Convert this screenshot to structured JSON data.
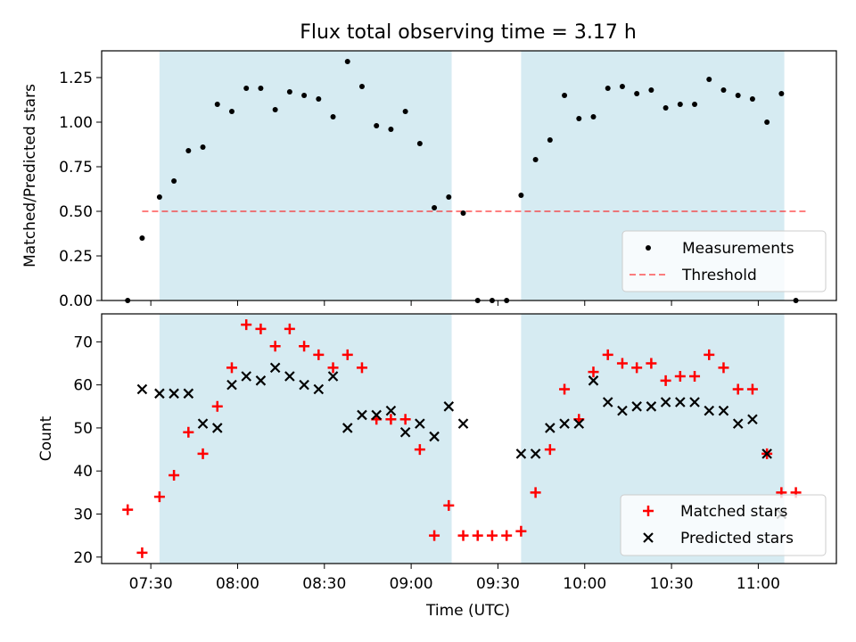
{
  "title": "Flux total observing time = 3.17 h",
  "chart_data": [
    {
      "type": "scatter",
      "panel": "top",
      "ylabel": "Matched/Predicted stars",
      "ylim": [
        0,
        1.4
      ],
      "yticks": [
        0,
        0.25,
        0.5,
        0.75,
        1.0,
        1.25
      ],
      "ytick_labels": [
        "0.00",
        "0.25",
        "0.50",
        "0.75",
        "1.00",
        "1.25"
      ],
      "shaded_spans": [
        [
          "07:33",
          "09:14"
        ],
        [
          "09:38",
          "11:09"
        ]
      ],
      "threshold": {
        "value": 0.5,
        "from": "07:27",
        "to": "11:17"
      },
      "series": [
        {
          "name": "Measurements",
          "x": [
            "07:22",
            "07:27",
            "07:33",
            "07:38",
            "07:43",
            "07:48",
            "07:53",
            "07:58",
            "08:03",
            "08:08",
            "08:13",
            "08:18",
            "08:23",
            "08:28",
            "08:33",
            "08:38",
            "08:43",
            "08:48",
            "08:53",
            "08:58",
            "09:03",
            "09:08",
            "09:13",
            "09:18",
            "09:23",
            "09:28",
            "09:33",
            "09:38",
            "09:43",
            "09:48",
            "09:53",
            "09:58",
            "10:03",
            "10:08",
            "10:13",
            "10:18",
            "10:23",
            "10:28",
            "10:33",
            "10:38",
            "10:43",
            "10:48",
            "10:53",
            "10:58",
            "11:03",
            "11:08",
            "11:13"
          ],
          "y": [
            0.0,
            0.35,
            0.58,
            0.67,
            0.84,
            0.86,
            1.1,
            1.06,
            1.19,
            1.19,
            1.07,
            1.17,
            1.15,
            1.13,
            1.03,
            1.34,
            1.2,
            0.98,
            0.96,
            1.06,
            0.88,
            0.52,
            0.58,
            0.49,
            0.0,
            0.0,
            0.0,
            0.59,
            0.79,
            0.9,
            1.15,
            1.02,
            1.03,
            1.19,
            1.2,
            1.16,
            1.18,
            1.08,
            1.1,
            1.1,
            1.24,
            1.18,
            1.15,
            1.13,
            1.0,
            1.16,
            0.0
          ]
        },
        {
          "name": "Threshold"
        }
      ],
      "legend": {
        "position": "lower-right",
        "entries": [
          "Measurements",
          "Threshold"
        ]
      }
    },
    {
      "type": "scatter",
      "panel": "bottom",
      "xlabel": "Time (UTC)",
      "ylabel": "Count",
      "ylim": [
        18.5,
        76.5
      ],
      "yticks": [
        20,
        30,
        40,
        50,
        60,
        70
      ],
      "ytick_labels": [
        "20",
        "30",
        "40",
        "50",
        "60",
        "70"
      ],
      "xlim": [
        "07:13",
        "11:27"
      ],
      "xticks": [
        "07:30",
        "08:00",
        "08:30",
        "09:00",
        "09:30",
        "10:00",
        "10:30",
        "11:00"
      ],
      "shaded_spans": [
        [
          "07:33",
          "09:14"
        ],
        [
          "09:38",
          "11:09"
        ]
      ],
      "series": [
        {
          "name": "Matched stars",
          "x": [
            "07:22",
            "07:27",
            "07:33",
            "07:38",
            "07:43",
            "07:48",
            "07:53",
            "07:58",
            "08:03",
            "08:08",
            "08:13",
            "08:18",
            "08:23",
            "08:28",
            "08:33",
            "08:38",
            "08:43",
            "08:48",
            "08:53",
            "08:58",
            "09:03",
            "09:08",
            "09:13",
            "09:18",
            "09:23",
            "09:28",
            "09:33",
            "09:38",
            "09:43",
            "09:48",
            "09:53",
            "09:58",
            "10:03",
            "10:08",
            "10:13",
            "10:18",
            "10:23",
            "10:28",
            "10:33",
            "10:38",
            "10:43",
            "10:48",
            "10:53",
            "10:58",
            "11:03",
            "11:08",
            "11:13"
          ],
          "y": [
            31,
            21,
            34,
            39,
            49,
            44,
            55,
            64,
            74,
            73,
            69,
            73,
            69,
            67,
            64,
            67,
            64,
            52,
            52,
            52,
            45,
            25,
            32,
            25,
            25,
            25,
            25,
            26,
            35,
            45,
            59,
            52,
            63,
            67,
            65,
            64,
            65,
            61,
            62,
            62,
            67,
            64,
            59,
            59,
            44,
            35,
            35
          ]
        },
        {
          "name": "Predicted stars",
          "x": [
            "07:27",
            "07:33",
            "07:38",
            "07:43",
            "07:48",
            "07:53",
            "07:58",
            "08:03",
            "08:08",
            "08:13",
            "08:18",
            "08:23",
            "08:28",
            "08:33",
            "08:38",
            "08:43",
            "08:48",
            "08:53",
            "08:58",
            "09:03",
            "09:08",
            "09:13",
            "09:18",
            "09:38",
            "09:43",
            "09:48",
            "09:53",
            "09:58",
            "10:03",
            "10:08",
            "10:13",
            "10:18",
            "10:23",
            "10:28",
            "10:33",
            "10:38",
            "10:43",
            "10:48",
            "10:53",
            "10:58",
            "11:03",
            "11:08"
          ],
          "y": [
            59,
            58,
            58,
            58,
            51,
            50,
            60,
            62,
            61,
            64,
            62,
            60,
            59,
            62,
            50,
            53,
            53,
            54,
            49,
            51,
            48,
            55,
            51,
            44,
            44,
            50,
            51,
            51,
            61,
            56,
            54,
            55,
            55,
            56,
            56,
            56,
            54,
            54,
            51,
            52,
            44,
            30
          ]
        }
      ],
      "legend": {
        "position": "lower-right",
        "entries": [
          "Matched stars",
          "Predicted stars"
        ]
      }
    }
  ]
}
